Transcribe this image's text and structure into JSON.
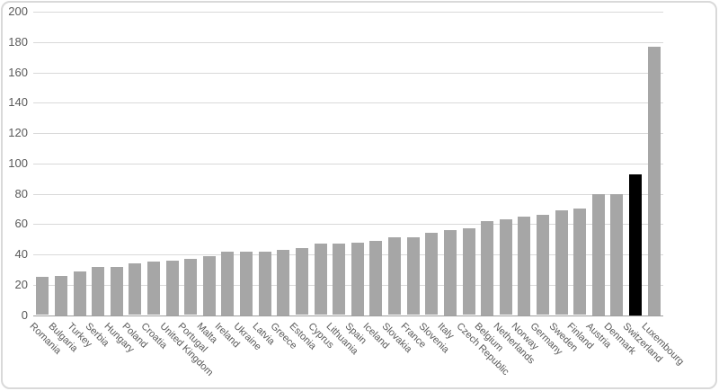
{
  "chart_data": {
    "type": "bar",
    "title": "",
    "xlabel": "",
    "ylabel": "",
    "categories": [
      "Romania",
      "Bulgaria",
      "Turkey",
      "Serbia",
      "Hungary",
      "Poland",
      "Croatia",
      "United Kingdom",
      "Portugal",
      "Malta",
      "Ireland",
      "Ukraine",
      "Latvia",
      "Greece",
      "Estonia",
      "Cyprus",
      "Lithuania",
      "Spain",
      "Iceland",
      "Slovakia",
      "France",
      "Slovenia",
      "Italy",
      "Czech Republic",
      "Belgium",
      "Netherlands",
      "Norway",
      "Germany",
      "Sweden",
      "Finland",
      "Austria",
      "Denmark",
      "Switzerland",
      "Luxembourg"
    ],
    "values": [
      25,
      26,
      29,
      32,
      32,
      34,
      35,
      36,
      37,
      39,
      42,
      42,
      42,
      43,
      44,
      47,
      47,
      48,
      49,
      51,
      51,
      54,
      56,
      57,
      62,
      63,
      65,
      66,
      69,
      70,
      80,
      80,
      93,
      177
    ],
    "highlight_category": "Switzerland",
    "ylim": [
      0,
      200
    ],
    "yticks": [
      0,
      20,
      40,
      60,
      80,
      100,
      120,
      140,
      160,
      180,
      200
    ],
    "grid": true,
    "legend": "none",
    "colors": {
      "bar": "#a6a6a6",
      "highlight": "#000000",
      "gridline": "#d9d9d9",
      "axis_line": "#9e9e9e",
      "tick_text": "#595959",
      "frame_border": "#d9d9d9",
      "background": "#ffffff"
    }
  }
}
